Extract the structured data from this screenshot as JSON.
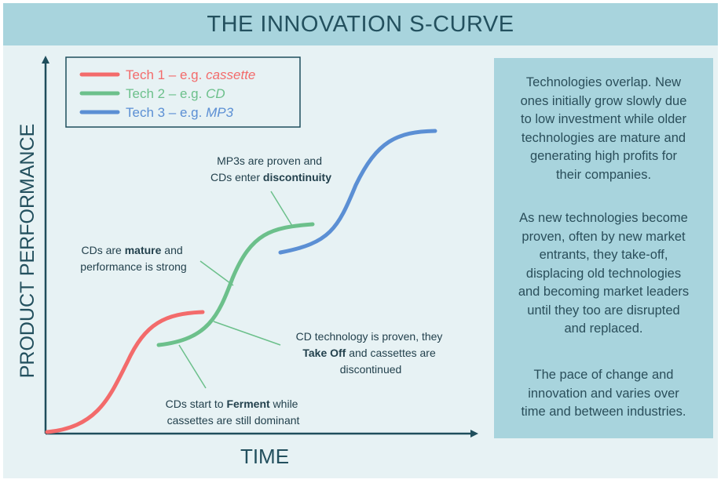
{
  "title": "THE INNOVATION S-CURVE",
  "axes": {
    "y_label": "PRODUCT PERFORMANCE",
    "x_label": "TIME"
  },
  "legend": [
    {
      "prefix": "Tech 1 – e.g. ",
      "example": "cassette",
      "color": "#f36b6b"
    },
    {
      "prefix": "Tech 2 – e.g. ",
      "example": "CD",
      "color": "#6cc08b"
    },
    {
      "prefix": "Tech 3 – e.g. ",
      "example": "MP3",
      "color": "#5b8fd4"
    }
  ],
  "annotations": {
    "discontinuity": {
      "line1": "MP3s are proven and",
      "line2_pre": "CDs enter ",
      "line2_bold": "discontinuity"
    },
    "mature": {
      "line1_pre": "CDs are ",
      "line1_bold": "mature",
      "line1_post": " and",
      "line2": "performance is strong"
    },
    "takeoff": {
      "line1": "CD technology is proven, they",
      "line2_bold": "Take Off",
      "line2_post": " and cassettes are",
      "line3": "discontinued"
    },
    "ferment": {
      "line1_pre": "CDs start to ",
      "line1_bold": "Ferment",
      "line1_post": " while",
      "line2": "cassettes are still dominant"
    }
  },
  "side_text": [
    [
      "Technologies overlap. New",
      "ones initially grow slowly due",
      "to low investment while older",
      "technologies are mature and",
      "generating high profits for",
      "their companies."
    ],
    [
      "As new technologies become",
      "proven, often by new market",
      "entrants, they take-off,",
      "displacing old technologies",
      "and becoming market leaders",
      "until they too are disrupted",
      "and replaced."
    ],
    [
      "The pace of change and",
      "innovation and varies over",
      "time and between industries."
    ]
  ],
  "colors": {
    "background": "#e7f2f4",
    "title_bar": "#a8d4dd",
    "axis": "#1f4e5c",
    "text": "#23505e"
  }
}
